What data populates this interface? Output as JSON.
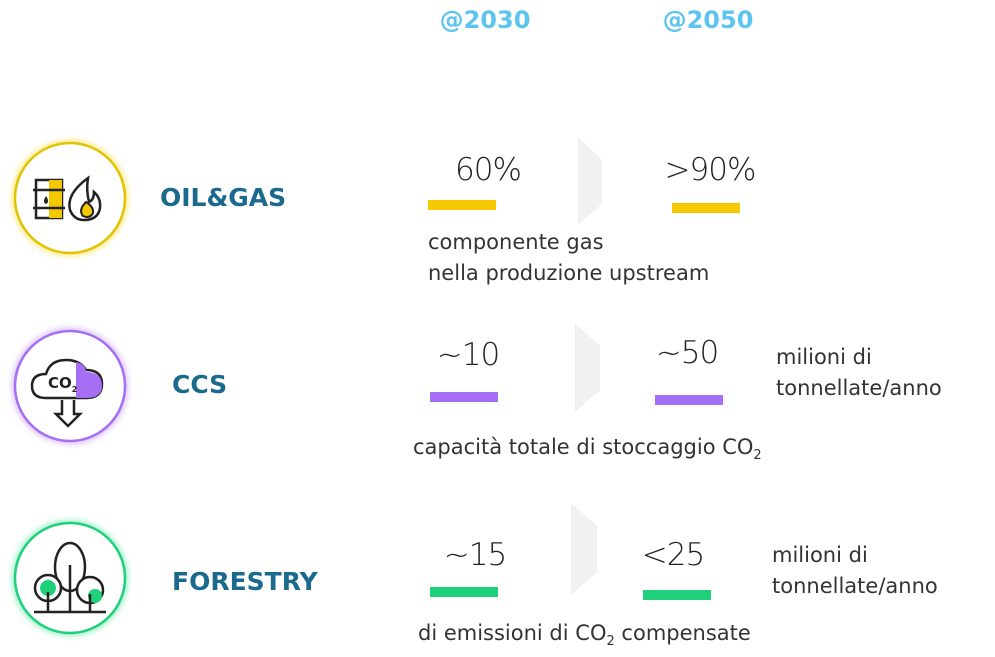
{
  "header": {
    "col1": "@2030",
    "col2": "@2050"
  },
  "rows": [
    {
      "label": "OIL&GAS",
      "value1": "60%",
      "value2": ">90%",
      "note": [
        "componente gas",
        "nella produzione upstream"
      ]
    },
    {
      "label": "CCS",
      "icon_text": [
        "CO",
        "2"
      ],
      "value1": "~10",
      "value2": "~50",
      "unit": [
        "milioni di",
        "tonnellate/anno"
      ],
      "note": [
        "capacità totale di stoccaggio CO",
        "2"
      ]
    },
    {
      "label": "FORESTRY",
      "value1": "~15",
      "value2": "<25",
      "unit": [
        "milioni di",
        "tonnellate/anno"
      ],
      "note": [
        "di emissioni di CO",
        "2",
        " compensate"
      ]
    }
  ]
}
